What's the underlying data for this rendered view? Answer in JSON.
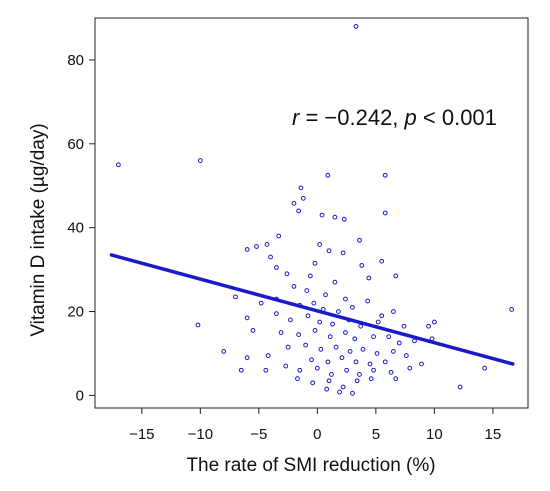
{
  "chart_data": {
    "type": "scatter",
    "xlabel": "The rate of SMI reduction (%)",
    "ylabel": "Vitamin D intake (µg/day)",
    "annotation": {
      "r_symbol": "r",
      "r_text": " = −0.242, ",
      "p_symbol": "p",
      "p_text": " < 0.001"
    },
    "xlim": [
      -19,
      18
    ],
    "ylim": [
      -3,
      90
    ],
    "xticks": [
      -15,
      -10,
      -5,
      0,
      5,
      10,
      15
    ],
    "xtick_labels": [
      "−15",
      "−10",
      "−5",
      "0",
      "5",
      "10",
      "15"
    ],
    "yticks": [
      0,
      20,
      40,
      60,
      80
    ],
    "ytick_labels": [
      "0",
      "20",
      "40",
      "60",
      "80"
    ],
    "grid": false,
    "legend": "none",
    "point_color": "#1a1acc",
    "line_color": "#1a1acc",
    "regression": {
      "x": [
        -17.6,
        16.7
      ],
      "y": [
        33.5,
        7.5
      ]
    },
    "points": [
      [
        -17,
        55
      ],
      [
        -10,
        56
      ],
      [
        3.3,
        88
      ],
      [
        0.9,
        52.5
      ],
      [
        5.8,
        52.5
      ],
      [
        -1.4,
        49.5
      ],
      [
        -1.2,
        47
      ],
      [
        -2,
        45.8
      ],
      [
        -1.6,
        44
      ],
      [
        3.6,
        37
      ],
      [
        0.4,
        43
      ],
      [
        1.5,
        42.5
      ],
      [
        2.3,
        42
      ],
      [
        5.8,
        43.5
      ],
      [
        -3.3,
        38
      ],
      [
        -5.2,
        35.5
      ],
      [
        -4,
        33
      ],
      [
        -6,
        34.8
      ],
      [
        -4.3,
        36
      ],
      [
        -3.5,
        30.5
      ],
      [
        -2.6,
        29
      ],
      [
        0.2,
        36
      ],
      [
        1,
        34.5
      ],
      [
        -0.2,
        31.5
      ],
      [
        2.2,
        34
      ],
      [
        3.8,
        31
      ],
      [
        5.5,
        32
      ],
      [
        -0.6,
        28.5
      ],
      [
        1.5,
        27
      ],
      [
        -2,
        26
      ],
      [
        -0.9,
        25
      ],
      [
        0.7,
        24
      ],
      [
        2.4,
        23
      ],
      [
        4.4,
        28
      ],
      [
        6.7,
        28.5
      ],
      [
        -7,
        23.5
      ],
      [
        -4.8,
        22
      ],
      [
        -3.5,
        23
      ],
      [
        -1.5,
        21.5
      ],
      [
        -0.3,
        22
      ],
      [
        0.5,
        20.5
      ],
      [
        1.8,
        20
      ],
      [
        3,
        21
      ],
      [
        4.3,
        22.5
      ],
      [
        5.5,
        19
      ],
      [
        6.5,
        20
      ],
      [
        -3.5,
        19.5
      ],
      [
        -2.3,
        18
      ],
      [
        -0.8,
        19
      ],
      [
        0.2,
        17.5
      ],
      [
        1.3,
        17
      ],
      [
        2.7,
        18
      ],
      [
        3.7,
        16.5
      ],
      [
        5.2,
        17.5
      ],
      [
        7.4,
        16.5
      ],
      [
        10,
        17.5
      ],
      [
        9.5,
        16.5
      ],
      [
        -6,
        18.5
      ],
      [
        -5.5,
        15.5
      ],
      [
        -3.1,
        15
      ],
      [
        -1.6,
        14.5
      ],
      [
        -0.2,
        15.5
      ],
      [
        1.1,
        14
      ],
      [
        2.4,
        15
      ],
      [
        3.2,
        13.5
      ],
      [
        4.8,
        14
      ],
      [
        6.1,
        14
      ],
      [
        7,
        12.5
      ],
      [
        8.3,
        13
      ],
      [
        9.8,
        13.5
      ],
      [
        -10.2,
        16.8
      ],
      [
        -8,
        10.5
      ],
      [
        -6,
        9
      ],
      [
        -4.2,
        9.5
      ],
      [
        -2.5,
        11.5
      ],
      [
        -1,
        12
      ],
      [
        0.3,
        11
      ],
      [
        1.6,
        11.5
      ],
      [
        2.8,
        10.5
      ],
      [
        3.9,
        11
      ],
      [
        5.1,
        10
      ],
      [
        6.5,
        10.5
      ],
      [
        7.6,
        9.5
      ],
      [
        -0.5,
        8.5
      ],
      [
        0.9,
        8
      ],
      [
        2.1,
        9
      ],
      [
        3.3,
        8
      ],
      [
        4.5,
        7.5
      ],
      [
        5.8,
        8
      ],
      [
        -2.7,
        7
      ],
      [
        -1.5,
        6
      ],
      [
        0,
        6.5
      ],
      [
        1.2,
        5
      ],
      [
        2.5,
        6
      ],
      [
        3.6,
        5
      ],
      [
        4.8,
        6
      ],
      [
        6.3,
        5.5
      ],
      [
        7.9,
        6.5
      ],
      [
        -6.5,
        6
      ],
      [
        -4.4,
        6
      ],
      [
        -1.7,
        4
      ],
      [
        -0.4,
        3
      ],
      [
        1,
        3.5
      ],
      [
        2.2,
        2
      ],
      [
        3.4,
        3.5
      ],
      [
        4.6,
        4
      ],
      [
        6.7,
        4
      ],
      [
        12.2,
        2
      ],
      [
        14.3,
        6.5
      ],
      [
        16.6,
        20.5
      ],
      [
        0.8,
        1.5
      ],
      [
        1.9,
        0.8
      ],
      [
        3,
        0.5
      ],
      [
        8.9,
        7.5
      ]
    ]
  }
}
